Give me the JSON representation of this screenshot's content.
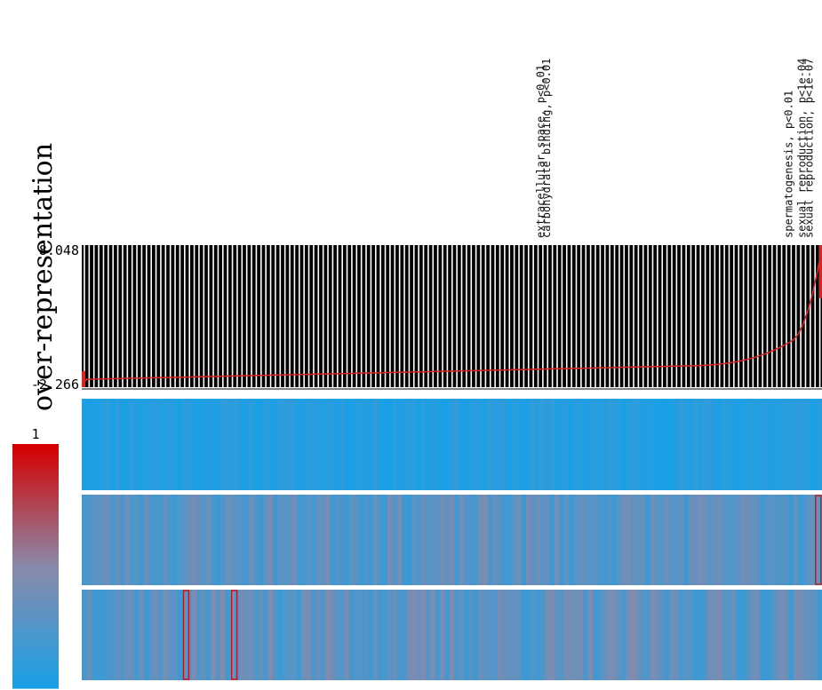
{
  "chart_data": {
    "type": "heatmap",
    "ylabel": "over-representation",
    "score_panel": {
      "ymax_label": "8.048",
      "ymin_label": "-2.266",
      "ylim": [
        -2.266,
        8.048
      ],
      "n_columns": 155,
      "line_color": "#dd2222",
      "background": "#000000",
      "stripe_color": "#ffffff"
    },
    "color_scale": {
      "max_label": "1",
      "low_color": "#1aa0e6",
      "mid_color": "#8a8aaa",
      "high_color": "#d40000"
    },
    "annotations": [
      {
        "text": "extracellular space, p<0.01",
        "column": 0.627
      },
      {
        "text": "carbohydrate binding, p<0.01",
        "column": 0.635
      },
      {
        "text": "spermatogenesis, p<0.01",
        "column": 0.962
      },
      {
        "text": "sexual reproduction, p<1e-04",
        "column": 0.98
      },
      {
        "text": "sexual reproduction, p<1e-07",
        "column": 0.99
      }
    ],
    "heatmap_rows": [
      {
        "mean_level": 0.05,
        "variability": 0.06,
        "seed": 11
      },
      {
        "mean_level": 0.28,
        "variability": 0.14,
        "seed": 23
      },
      {
        "mean_level": 0.3,
        "variability": 0.16,
        "seed": 37
      }
    ],
    "highlighted_cells": [
      {
        "row": 1,
        "column": 0.995
      },
      {
        "row": 2,
        "column": 0.141
      },
      {
        "row": 2,
        "column": 0.206
      }
    ]
  }
}
